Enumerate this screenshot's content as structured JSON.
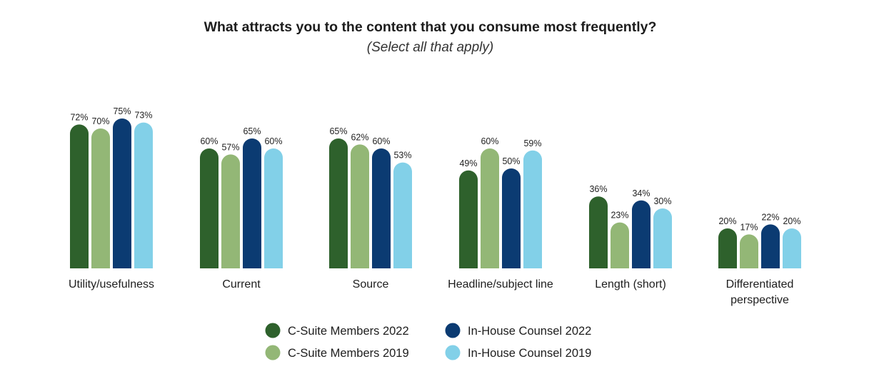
{
  "chart_data": {
    "type": "bar",
    "title": "What attracts you to the content that you consume most frequently?",
    "subtitle": "(Select all that apply)",
    "categories": [
      [
        "Utility/usefulness"
      ],
      [
        "Current"
      ],
      [
        "Source"
      ],
      [
        "Headline/subject line"
      ],
      [
        "Length (short)"
      ],
      [
        "Differentiated",
        "perspective"
      ]
    ],
    "series": [
      {
        "name": "C-Suite Members 2022",
        "color": "#2e612c",
        "values": [
          72,
          60,
          65,
          49,
          36,
          20
        ]
      },
      {
        "name": "C-Suite Members 2019",
        "color": "#93b776",
        "values": [
          70,
          57,
          62,
          60,
          23,
          17
        ]
      },
      {
        "name": "In-House Counsel 2022",
        "color": "#0b3b72",
        "values": [
          75,
          65,
          60,
          50,
          34,
          22
        ]
      },
      {
        "name": "In-House Counsel 2019",
        "color": "#82d0e8",
        "values": [
          73,
          60,
          53,
          59,
          30,
          20
        ]
      }
    ],
    "value_suffix": "%",
    "ylim": [
      0,
      100
    ],
    "grid": false,
    "legend_position": "bottom"
  }
}
